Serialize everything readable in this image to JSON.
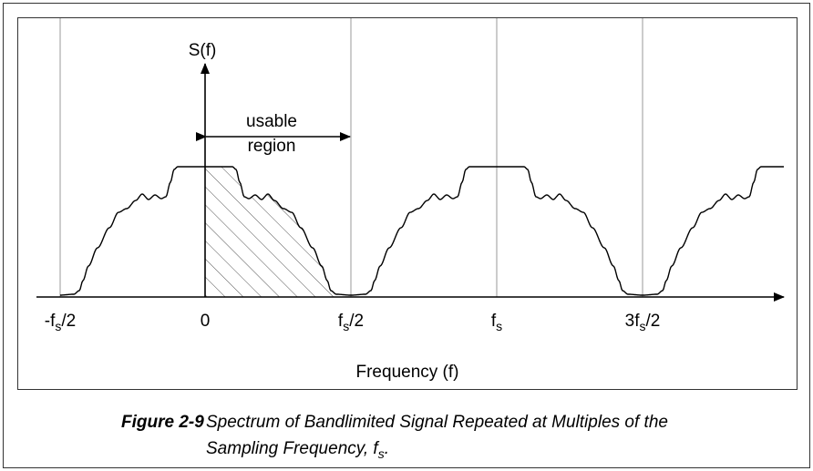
{
  "axis": {
    "y_label": "S(f)",
    "x_label": "Frequency (f)",
    "ticks": [
      [
        "-f",
        "s",
        "/2"
      ],
      [
        "0"
      ],
      [
        "f",
        "s",
        "/2"
      ],
      [
        "f",
        "s"
      ],
      [
        "3f",
        "s",
        "/2"
      ]
    ]
  },
  "annotation": {
    "lines": [
      "usable",
      "region"
    ]
  },
  "caption": {
    "number": "Figure 2-9",
    "lines": [
      "Spectrum of Bandlimited Signal Repeated at Multiples of the",
      "Sampling Frequency, f"
    ],
    "sub": "s",
    "end": "."
  }
}
